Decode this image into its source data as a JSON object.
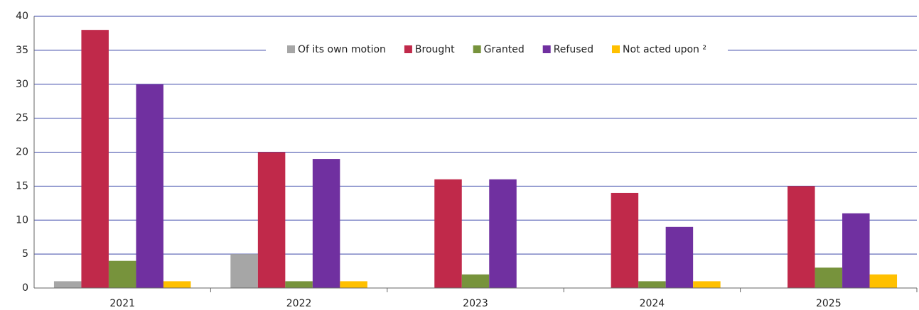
{
  "chart_data": {
    "type": "bar",
    "categories": [
      "2021",
      "2022",
      "2023",
      "2024",
      "2025"
    ],
    "series": [
      {
        "name": "Of its own motion",
        "color": "#a6a6a6",
        "values": [
          1,
          5,
          0,
          0,
          0
        ]
      },
      {
        "name": "Brought",
        "color": "#c0294a",
        "values": [
          38,
          20,
          16,
          14,
          15
        ]
      },
      {
        "name": "Granted",
        "color": "#77933c",
        "values": [
          4,
          1,
          2,
          1,
          3
        ]
      },
      {
        "name": "Refused",
        "color": "#7030a0",
        "values": [
          30,
          19,
          16,
          9,
          11
        ]
      },
      {
        "name": "Not acted upon ²",
        "color": "#ffc000",
        "values": [
          1,
          1,
          0,
          1,
          2
        ]
      }
    ],
    "ylim": [
      0,
      40
    ],
    "yticks": [
      0,
      5,
      10,
      15,
      20,
      25,
      30,
      35,
      40
    ],
    "grid": true,
    "legend": "top"
  }
}
